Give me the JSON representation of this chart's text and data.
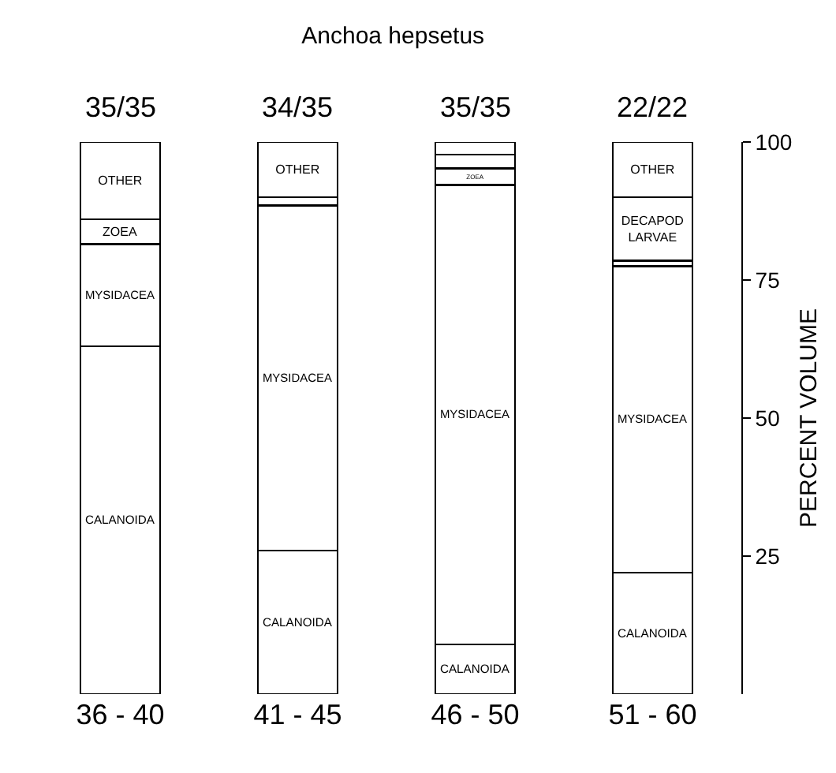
{
  "chart_data": {
    "type": "bar",
    "title": "Anchoa hepsetus",
    "ylabel": "PERCENT VOLUME",
    "stacked": true,
    "categories": [
      "36 - 40",
      "41 - 45",
      "46 - 50",
      "51 - 60"
    ],
    "series": [
      {
        "name": "CALANOIDA",
        "color": "#ffffff",
        "values": [
          63,
          26,
          9,
          22
        ]
      },
      {
        "name": "MYSIDACEA",
        "color": "#ffffff",
        "values": [
          18.5,
          62.5,
          83.2,
          55.5
        ]
      },
      {
        "name": "ZOEA",
        "color": "#ffffff",
        "values": [
          4.5,
          1.5,
          3,
          1
        ]
      },
      {
        "name": "DECAPOD LARVAE",
        "color": "#ffffff",
        "values": [
          null,
          null,
          2.5,
          11.5
        ]
      },
      {
        "name": "OTHER",
        "color": "#ffffff",
        "values": [
          14,
          10,
          2.3,
          10
        ]
      }
    ],
    "annotations": [
      "35/35",
      "34/35",
      "35/35",
      "22/22"
    ],
    "ylim": [
      0,
      100
    ],
    "yticks": [
      25,
      50,
      75,
      100
    ],
    "grid": false,
    "legend": false
  }
}
